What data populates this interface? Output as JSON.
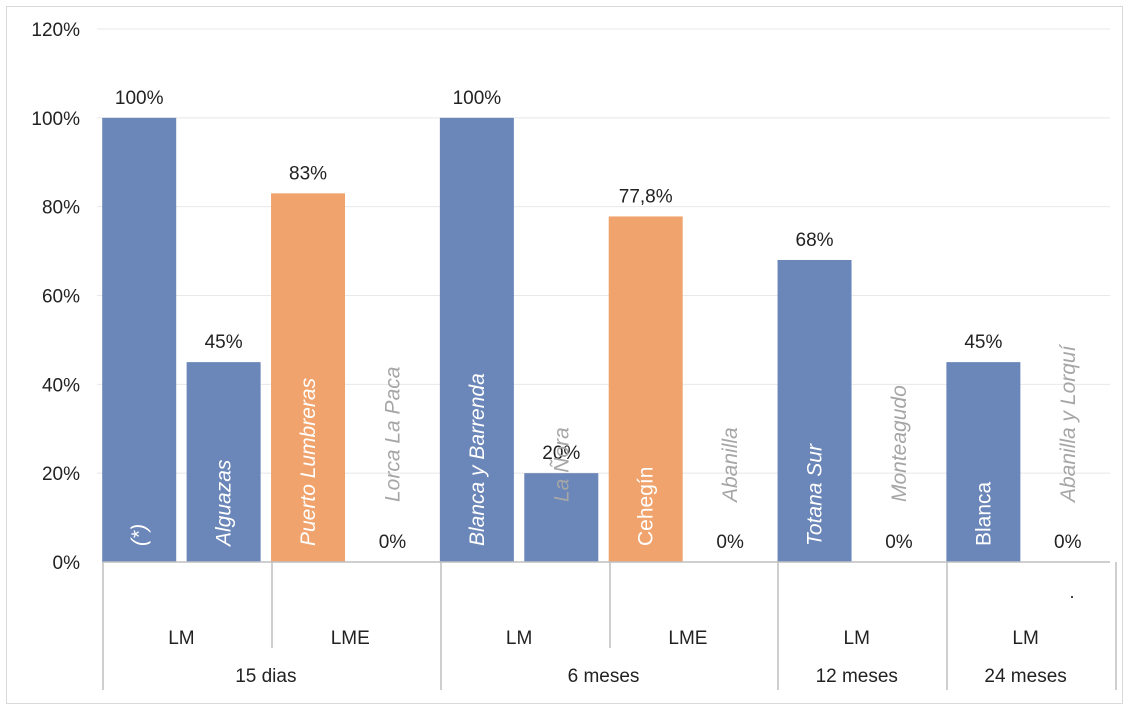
{
  "chart_data": {
    "type": "bar",
    "ylim": [
      0,
      120
    ],
    "y_ticks": [
      "0%",
      "20%",
      "40%",
      "60%",
      "80%",
      "100%",
      "120%"
    ],
    "grid": true,
    "colors": {
      "blue": "#6b86b8",
      "orange": "#f0a36c",
      "grid": "#e8e8e8",
      "axis": "#bfbfbf",
      "label_dark": "#222222",
      "label_gray": "#a6a6a6"
    },
    "bars": [
      {
        "name": "(*)",
        "value": 100,
        "value_label": "100%",
        "color": "blue",
        "name_style": "white-italic"
      },
      {
        "name": "Alguazas",
        "value": 45,
        "value_label": "45%",
        "color": "blue",
        "name_style": "white-italic"
      },
      {
        "name": "Puerto Lumbreras",
        "value": 83,
        "value_label": "83%",
        "color": "orange",
        "name_style": "white-italic"
      },
      {
        "name": "Lorca La Paca",
        "value": 0,
        "value_label": "0%",
        "color": "blue",
        "name_style": "gray-italic"
      },
      {
        "name": "Blanca y Barrenda",
        "value": 100,
        "value_label": "100%",
        "color": "blue",
        "name_style": "white-italic"
      },
      {
        "name": "La Ñora",
        "value": 20,
        "value_label": "20%",
        "color": "blue",
        "name_style": "gray-italic"
      },
      {
        "name": "Cehegín",
        "value": 77.8,
        "value_label": "77,8%",
        "color": "orange",
        "name_style": "white"
      },
      {
        "name": "Abanilla",
        "value": 0,
        "value_label": "0%",
        "color": "blue",
        "name_style": "gray-italic"
      },
      {
        "name": "Totana Sur",
        "value": 68,
        "value_label": "68%",
        "color": "blue",
        "name_style": "white-italic"
      },
      {
        "name": "Monteagudo",
        "value": 0,
        "value_label": "0%",
        "color": "blue",
        "name_style": "gray-italic"
      },
      {
        "name": "Blanca",
        "value": 45,
        "value_label": "45%",
        "color": "blue",
        "name_style": "white"
      },
      {
        "name": "Abanilla y Lorquí",
        "value": 0,
        "value_label": "0%",
        "color": "blue",
        "name_style": "gray-italic"
      }
    ],
    "categories_level1": [
      {
        "label": "LM",
        "span": 2
      },
      {
        "label": "LME",
        "span": 2
      },
      {
        "label": "LM",
        "span": 2
      },
      {
        "label": "LME",
        "span": 2
      },
      {
        "label": "LM",
        "span": 2
      },
      {
        "label": "LM",
        "span": 2
      }
    ],
    "categories_level2": [
      {
        "label": "15 dias",
        "span": 4
      },
      {
        "label": "6 meses",
        "span": 4
      },
      {
        "label": "12 meses",
        "span": 2
      },
      {
        "label": "24 meses",
        "span": 2
      }
    ],
    "stray_mark": "."
  }
}
